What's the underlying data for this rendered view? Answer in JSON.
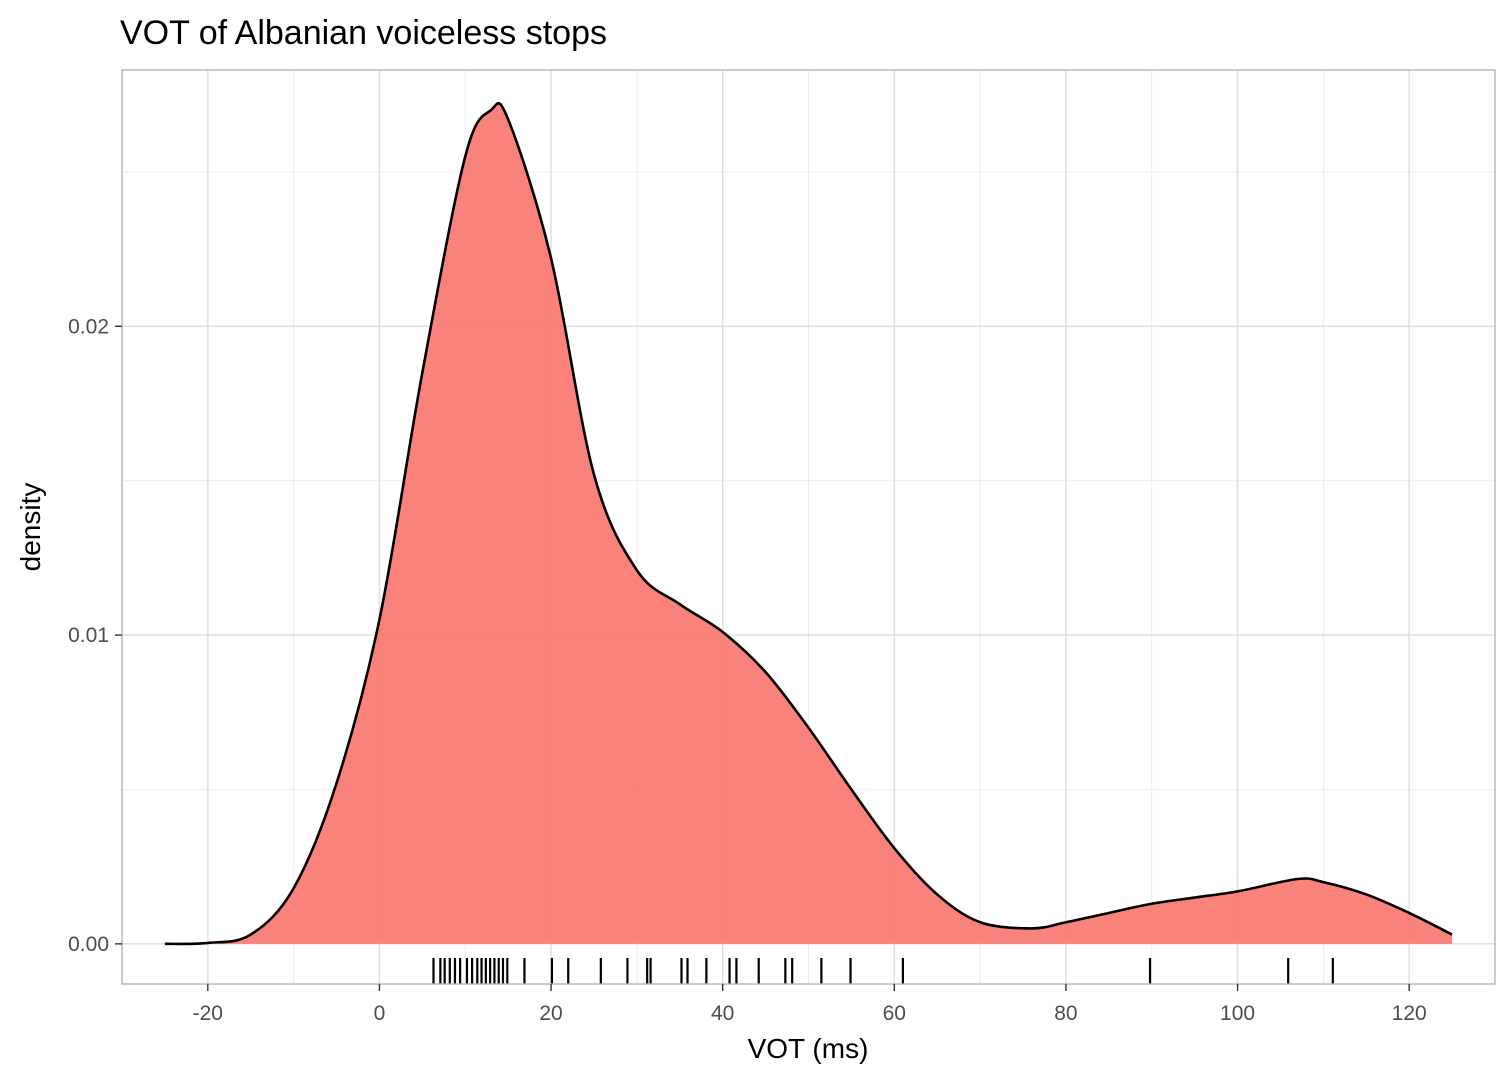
{
  "chart_data": {
    "type": "area",
    "title": "VOT of Albanian voiceless stops",
    "xlabel": "VOT (ms)",
    "ylabel": "density",
    "xlim": [
      -30,
      130
    ],
    "ylim": [
      -0.0013,
      0.0283
    ],
    "x_ticks": [
      "-20",
      "0",
      "20",
      "40",
      "60",
      "80",
      "100",
      "120"
    ],
    "y_ticks": [
      "0.00",
      "0.01",
      "0.02"
    ],
    "grid": true,
    "fill_color": "#F8766D",
    "fill_opacity": 0.9,
    "line_color": "#000000",
    "density_curve": {
      "x": [
        -25,
        -20,
        -15,
        -10,
        -5,
        0,
        5,
        10,
        13,
        15,
        20,
        25,
        30,
        35,
        40,
        45,
        50,
        55,
        60,
        65,
        70,
        76,
        80,
        85,
        90,
        95,
        100,
        107,
        110,
        115,
        120,
        125
      ],
      "y": [
        0.0,
        3e-05,
        0.0003,
        0.0018,
        0.0052,
        0.0105,
        0.0185,
        0.0255,
        0.027,
        0.0267,
        0.0222,
        0.0152,
        0.0121,
        0.011,
        0.0101,
        0.0088,
        0.007,
        0.005,
        0.0031,
        0.0016,
        0.0007,
        0.0005,
        0.0007,
        0.001,
        0.0013,
        0.0015,
        0.0017,
        0.0021,
        0.002,
        0.0016,
        0.001,
        0.0003
      ]
    },
    "rug": [
      6.3,
      7.1,
      7.6,
      8.2,
      8.8,
      9.4,
      10.2,
      10.8,
      11.4,
      11.9,
      12.4,
      12.9,
      13.4,
      13.9,
      14.4,
      14.9,
      16.9,
      20.1,
      22.0,
      25.8,
      28.9,
      31.2,
      31.6,
      35.2,
      35.9,
      38.1,
      40.8,
      41.6,
      44.2,
      47.3,
      48.1,
      51.5,
      54.9,
      61.0,
      89.8,
      105.9,
      111.1
    ]
  }
}
